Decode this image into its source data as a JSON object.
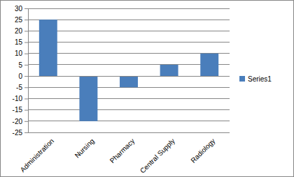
{
  "chart_data": {
    "type": "bar",
    "categories": [
      "Administration",
      "Nursing",
      "Pharmacy",
      "Central Supply",
      "Radiology"
    ],
    "series": [
      {
        "name": "Series1",
        "color": "#4a7ebb",
        "values": [
          25,
          -20,
          -5,
          5,
          10
        ]
      }
    ],
    "ylim": [
      -25,
      30
    ],
    "yticks": [
      -25,
      -20,
      -15,
      -10,
      -5,
      0,
      5,
      10,
      15,
      20,
      25,
      30
    ],
    "grid": true,
    "legend": "right"
  }
}
